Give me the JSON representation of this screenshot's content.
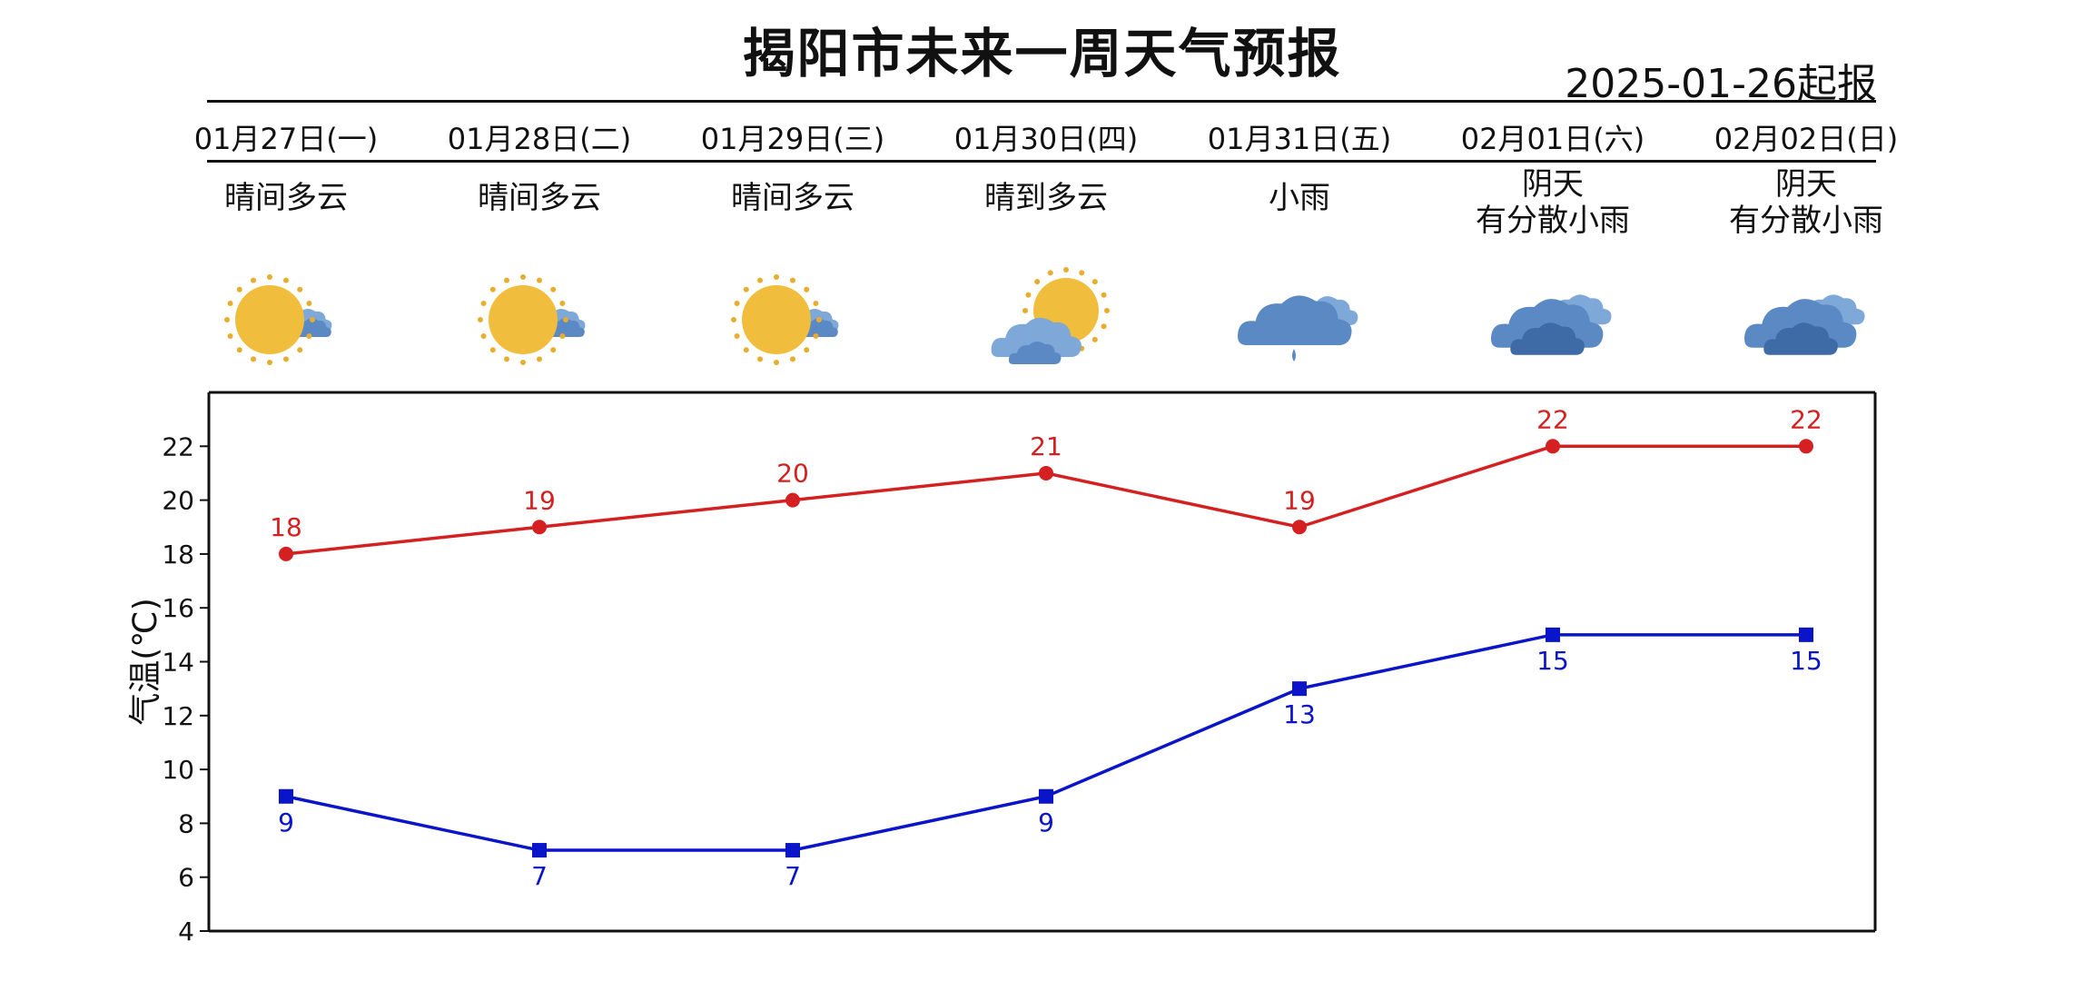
{
  "title": "揭阳市未来一周天气预报",
  "issue_date": "2025-01-26起报",
  "days": [
    {
      "date": "01月27日(一)",
      "desc_lines": [
        "晴间多云"
      ],
      "icon": "sun-partly-cloudy-icon"
    },
    {
      "date": "01月28日(二)",
      "desc_lines": [
        "晴间多云"
      ],
      "icon": "sun-partly-cloudy-icon"
    },
    {
      "date": "01月29日(三)",
      "desc_lines": [
        "晴间多云"
      ],
      "icon": "sun-partly-cloudy-icon"
    },
    {
      "date": "01月30日(四)",
      "desc_lines": [
        "晴到多云"
      ],
      "icon": "cloud-sun-icon"
    },
    {
      "date": "01月31日(五)",
      "desc_lines": [
        "小雨"
      ],
      "icon": "rain-cloud-icon"
    },
    {
      "date": "02月01日(六)",
      "desc_lines": [
        "阴天",
        "有分散小雨"
      ],
      "icon": "overcast-cloud-icon"
    },
    {
      "date": "02月02日(日)",
      "desc_lines": [
        "阴天",
        "有分散小雨"
      ],
      "icon": "overcast-cloud-icon"
    }
  ],
  "chart_data": {
    "type": "line",
    "categories": [
      "01月27日(一)",
      "01月28日(二)",
      "01月29日(三)",
      "01月30日(四)",
      "01月31日(五)",
      "02月01日(六)",
      "02月02日(日)"
    ],
    "series": [
      {
        "values": [
          18,
          19,
          20,
          21,
          19,
          22,
          22
        ],
        "color": "#d42020",
        "marker": "circle",
        "labels": "above"
      },
      {
        "values": [
          9,
          7,
          7,
          9,
          13,
          15,
          15
        ],
        "color": "#0a14c8",
        "marker": "square",
        "labels": "below"
      }
    ],
    "ylabel": "气温(℃)",
    "ylim": [
      4,
      24
    ],
    "yticks": [
      4,
      6,
      8,
      10,
      12,
      14,
      16,
      18,
      20,
      22
    ],
    "grid": false
  },
  "colors": {
    "sun": "#f0bd3c",
    "sun_rays": "#e8ad2e",
    "cloud_light": "#7ea8d8",
    "cloud_mid": "#5a89c4",
    "cloud_dark": "#3e6aa6"
  }
}
